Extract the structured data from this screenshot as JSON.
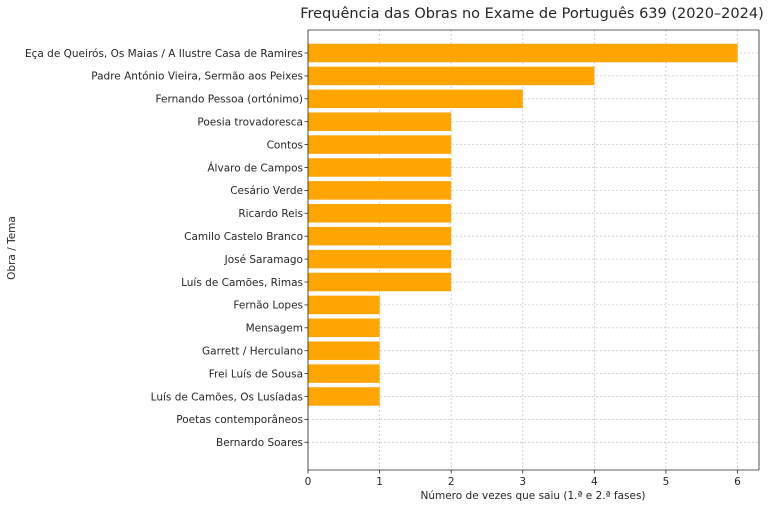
{
  "chart_data": {
    "type": "bar",
    "orientation": "horizontal",
    "title": "Frequência das Obras no Exame de Português 639 (2020–2024)",
    "xlabel": "Número de vezes que saiu (1.ª e 2.ª fases)",
    "ylabel": "Obra / Tema",
    "categories": [
      "Eça de Queirós, Os Maias / A Ilustre Casa de Ramires",
      "Padre António Vieira, Sermão aos Peixes",
      "Fernando Pessoa (ortónimo)",
      "Poesia trovadoresca",
      "Contos",
      "Álvaro de Campos",
      "Cesário Verde",
      "Ricardo Reis",
      "Camilo Castelo Branco",
      "José Saramago",
      "Luís de Camões, Rimas",
      "Fernão Lopes",
      "Mensagem",
      "Garrett / Herculano",
      "Frei Luís de Sousa",
      "Luís de Camões, Os Lusíadas",
      "Poetas contemporâneos",
      "Bernardo Soares"
    ],
    "values": [
      6,
      4,
      3,
      2,
      2,
      2,
      2,
      2,
      2,
      2,
      2,
      1,
      1,
      1,
      1,
      1,
      0,
      0
    ],
    "xlim": [
      0,
      6.3
    ],
    "xticks": [
      "0",
      "1",
      "2",
      "3",
      "4",
      "5",
      "6"
    ],
    "grid": true,
    "bar_color": "#ffa500"
  }
}
